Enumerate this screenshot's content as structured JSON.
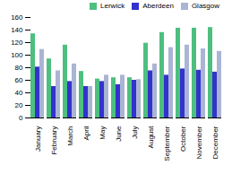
{
  "chart_data": {
    "type": "bar",
    "categories": [
      "January",
      "February",
      "March",
      "April",
      "May",
      "June",
      "July",
      "August",
      "September",
      "October",
      "November",
      "December"
    ],
    "series": [
      {
        "name": "Lerwick",
        "color": "#4dbf7f",
        "values": [
          134,
          94,
          116,
          74,
          62,
          64,
          64,
          119,
          136,
          143,
          143,
          144
        ]
      },
      {
        "name": "Aberdeen",
        "color": "#3333cc",
        "values": [
          81,
          50,
          58,
          50,
          58,
          53,
          60,
          75,
          68,
          78,
          76,
          73
        ]
      },
      {
        "name": "Glasgow",
        "color": "#aab4d4",
        "values": [
          109,
          75,
          86,
          50,
          68,
          68,
          61,
          86,
          112,
          116,
          110,
          106
        ]
      }
    ],
    "ylim": [
      0,
      160
    ],
    "yticks": [
      0,
      20,
      40,
      60,
      80,
      100,
      120,
      140,
      160
    ],
    "legend": "upper-right",
    "grid": false
  }
}
